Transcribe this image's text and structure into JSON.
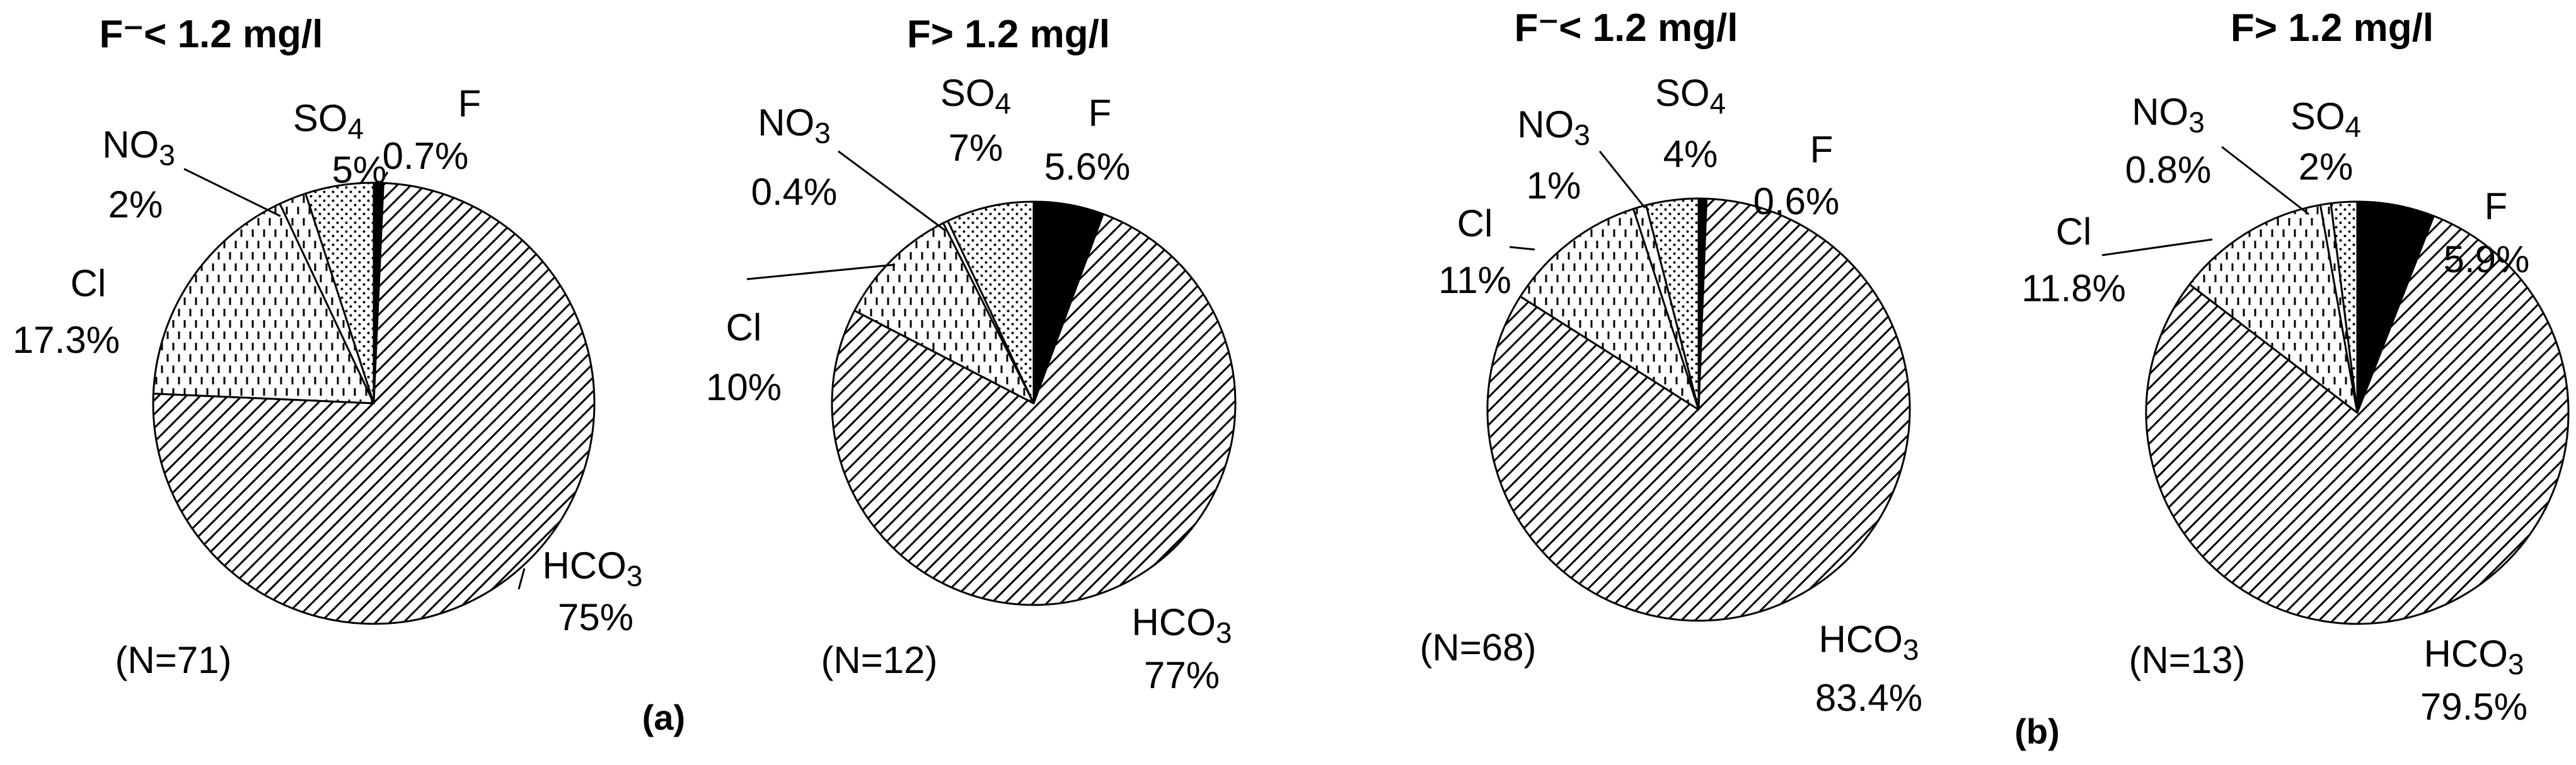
{
  "panels": [
    {
      "label": "(a)"
    },
    {
      "label": "(b)"
    }
  ],
  "chart_data": [
    {
      "type": "pie",
      "panel": "(a)",
      "title": "F⁻< 1.2 mg/l",
      "n_label": "(N=71)",
      "slices": [
        {
          "name": "F",
          "value": 0.7,
          "label": "0.7%",
          "fill": "solid"
        },
        {
          "name": "HCO3",
          "value": 75,
          "label": "75%",
          "fill": "diagonal"
        },
        {
          "name": "Cl",
          "value": 17.3,
          "label": "17.3%",
          "fill": "dashes"
        },
        {
          "name": "NO3",
          "value": 2,
          "label": "2%",
          "fill": "dashes"
        },
        {
          "name": "SO4",
          "value": 5,
          "label": "5%",
          "fill": "dots"
        }
      ]
    },
    {
      "type": "pie",
      "panel": "(a)",
      "title": "F> 1.2 mg/l",
      "n_label": "(N=12)",
      "slices": [
        {
          "name": "F",
          "value": 5.6,
          "label": "5.6%",
          "fill": "solid"
        },
        {
          "name": "HCO3",
          "value": 77,
          "label": "77%",
          "fill": "diagonal"
        },
        {
          "name": "Cl",
          "value": 10,
          "label": "10%",
          "fill": "dashes"
        },
        {
          "name": "NO3",
          "value": 0.4,
          "label": "0.4%",
          "fill": "dashes"
        },
        {
          "name": "SO4",
          "value": 7,
          "label": "7%",
          "fill": "dots"
        }
      ]
    },
    {
      "type": "pie",
      "panel": "(b)",
      "title": "F⁻< 1.2 mg/l",
      "n_label": "(N=68)",
      "slices": [
        {
          "name": "F",
          "value": 0.6,
          "label": "0.6%",
          "fill": "solid"
        },
        {
          "name": "HCO3",
          "value": 83.4,
          "label": "83.4%",
          "fill": "diagonal"
        },
        {
          "name": "Cl",
          "value": 11,
          "label": "11%",
          "fill": "dashes"
        },
        {
          "name": "NO3",
          "value": 1,
          "label": "1%",
          "fill": "dashes"
        },
        {
          "name": "SO4",
          "value": 4,
          "label": "4%",
          "fill": "dots"
        }
      ]
    },
    {
      "type": "pie",
      "panel": "(b)",
      "title": "F> 1.2 mg/l",
      "n_label": "(N=13)",
      "slices": [
        {
          "name": "F",
          "value": 5.9,
          "label": "5.9%",
          "fill": "solid"
        },
        {
          "name": "HCO3",
          "value": 79.5,
          "label": "79.5%",
          "fill": "diagonal"
        },
        {
          "name": "Cl",
          "value": 11.8,
          "label": "11.8%",
          "fill": "dashes"
        },
        {
          "name": "NO3",
          "value": 0.8,
          "label": "0.8%",
          "fill": "dashes"
        },
        {
          "name": "SO4",
          "value": 2,
          "label": "2%",
          "fill": "dots"
        }
      ]
    }
  ]
}
